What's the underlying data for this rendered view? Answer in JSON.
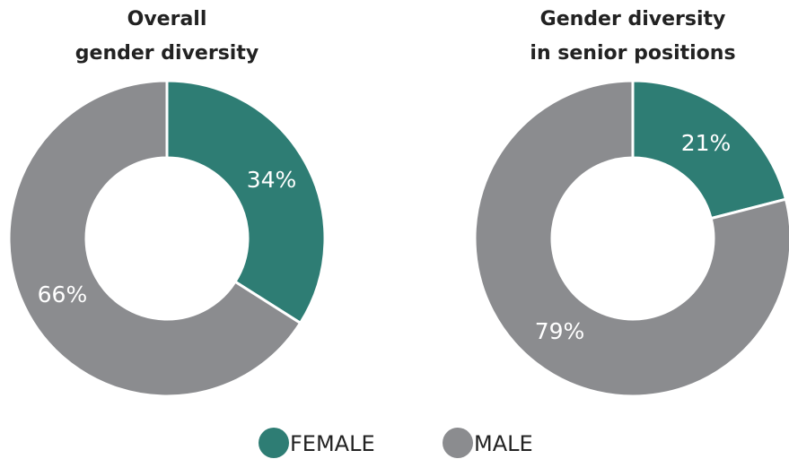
{
  "chart_data": [
    {
      "type": "donut",
      "title": [
        "Overall",
        "gender diversity"
      ],
      "categories": [
        "FEMALE",
        "MALE"
      ],
      "values": [
        34,
        66
      ],
      "value_labels": [
        "34%",
        "66%"
      ],
      "colors": [
        "#2e7d74",
        "#8b8c8f"
      ]
    },
    {
      "type": "donut",
      "title": [
        "Gender diversity",
        "in senior positions"
      ],
      "categories": [
        "FEMALE",
        "MALE"
      ],
      "values": [
        21,
        79
      ],
      "value_labels": [
        "21%",
        "79%"
      ],
      "colors": [
        "#2e7d74",
        "#8b8c8f"
      ]
    }
  ]
}
